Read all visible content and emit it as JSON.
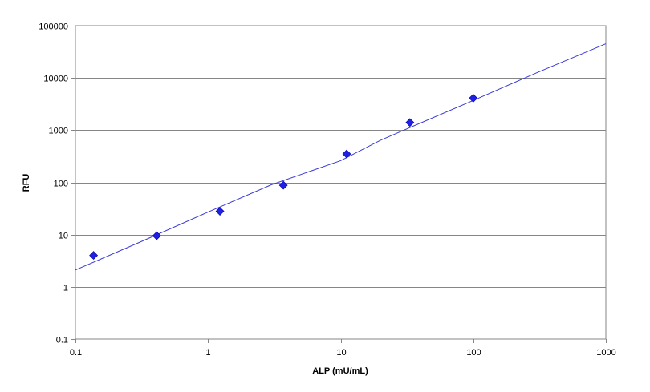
{
  "chart_data": {
    "type": "scatter",
    "title": "",
    "xlabel": "ALP (mU/mL)",
    "ylabel": "RFU",
    "x_scale": "log",
    "y_scale": "log",
    "xlim": [
      0.1,
      1000
    ],
    "ylim": [
      0.1,
      100000
    ],
    "x_ticks": [
      "0.1",
      "1",
      "10",
      "100",
      "1000"
    ],
    "y_ticks": [
      "0.1",
      "1",
      "10",
      "100",
      "1000",
      "10000",
      "100000"
    ],
    "grid": "horizontal",
    "legend": "none",
    "series": [
      {
        "type": "scatter",
        "marker": "diamond",
        "color": "#1f1fe6",
        "x": [
          0.137,
          0.41,
          1.23,
          3.7,
          11.1,
          33.3,
          100
        ],
        "y": [
          4.0,
          9.5,
          28,
          88,
          350,
          1400,
          4100
        ]
      },
      {
        "type": "line",
        "color": "#3b3bd4",
        "x": [
          0.1,
          0.3,
          1,
          3,
          10,
          20,
          30,
          100,
          300,
          1000
        ],
        "y": [
          2.1,
          7.0,
          27,
          90,
          260,
          640,
          1000,
          3700,
          12500,
          45000
        ]
      }
    ]
  }
}
